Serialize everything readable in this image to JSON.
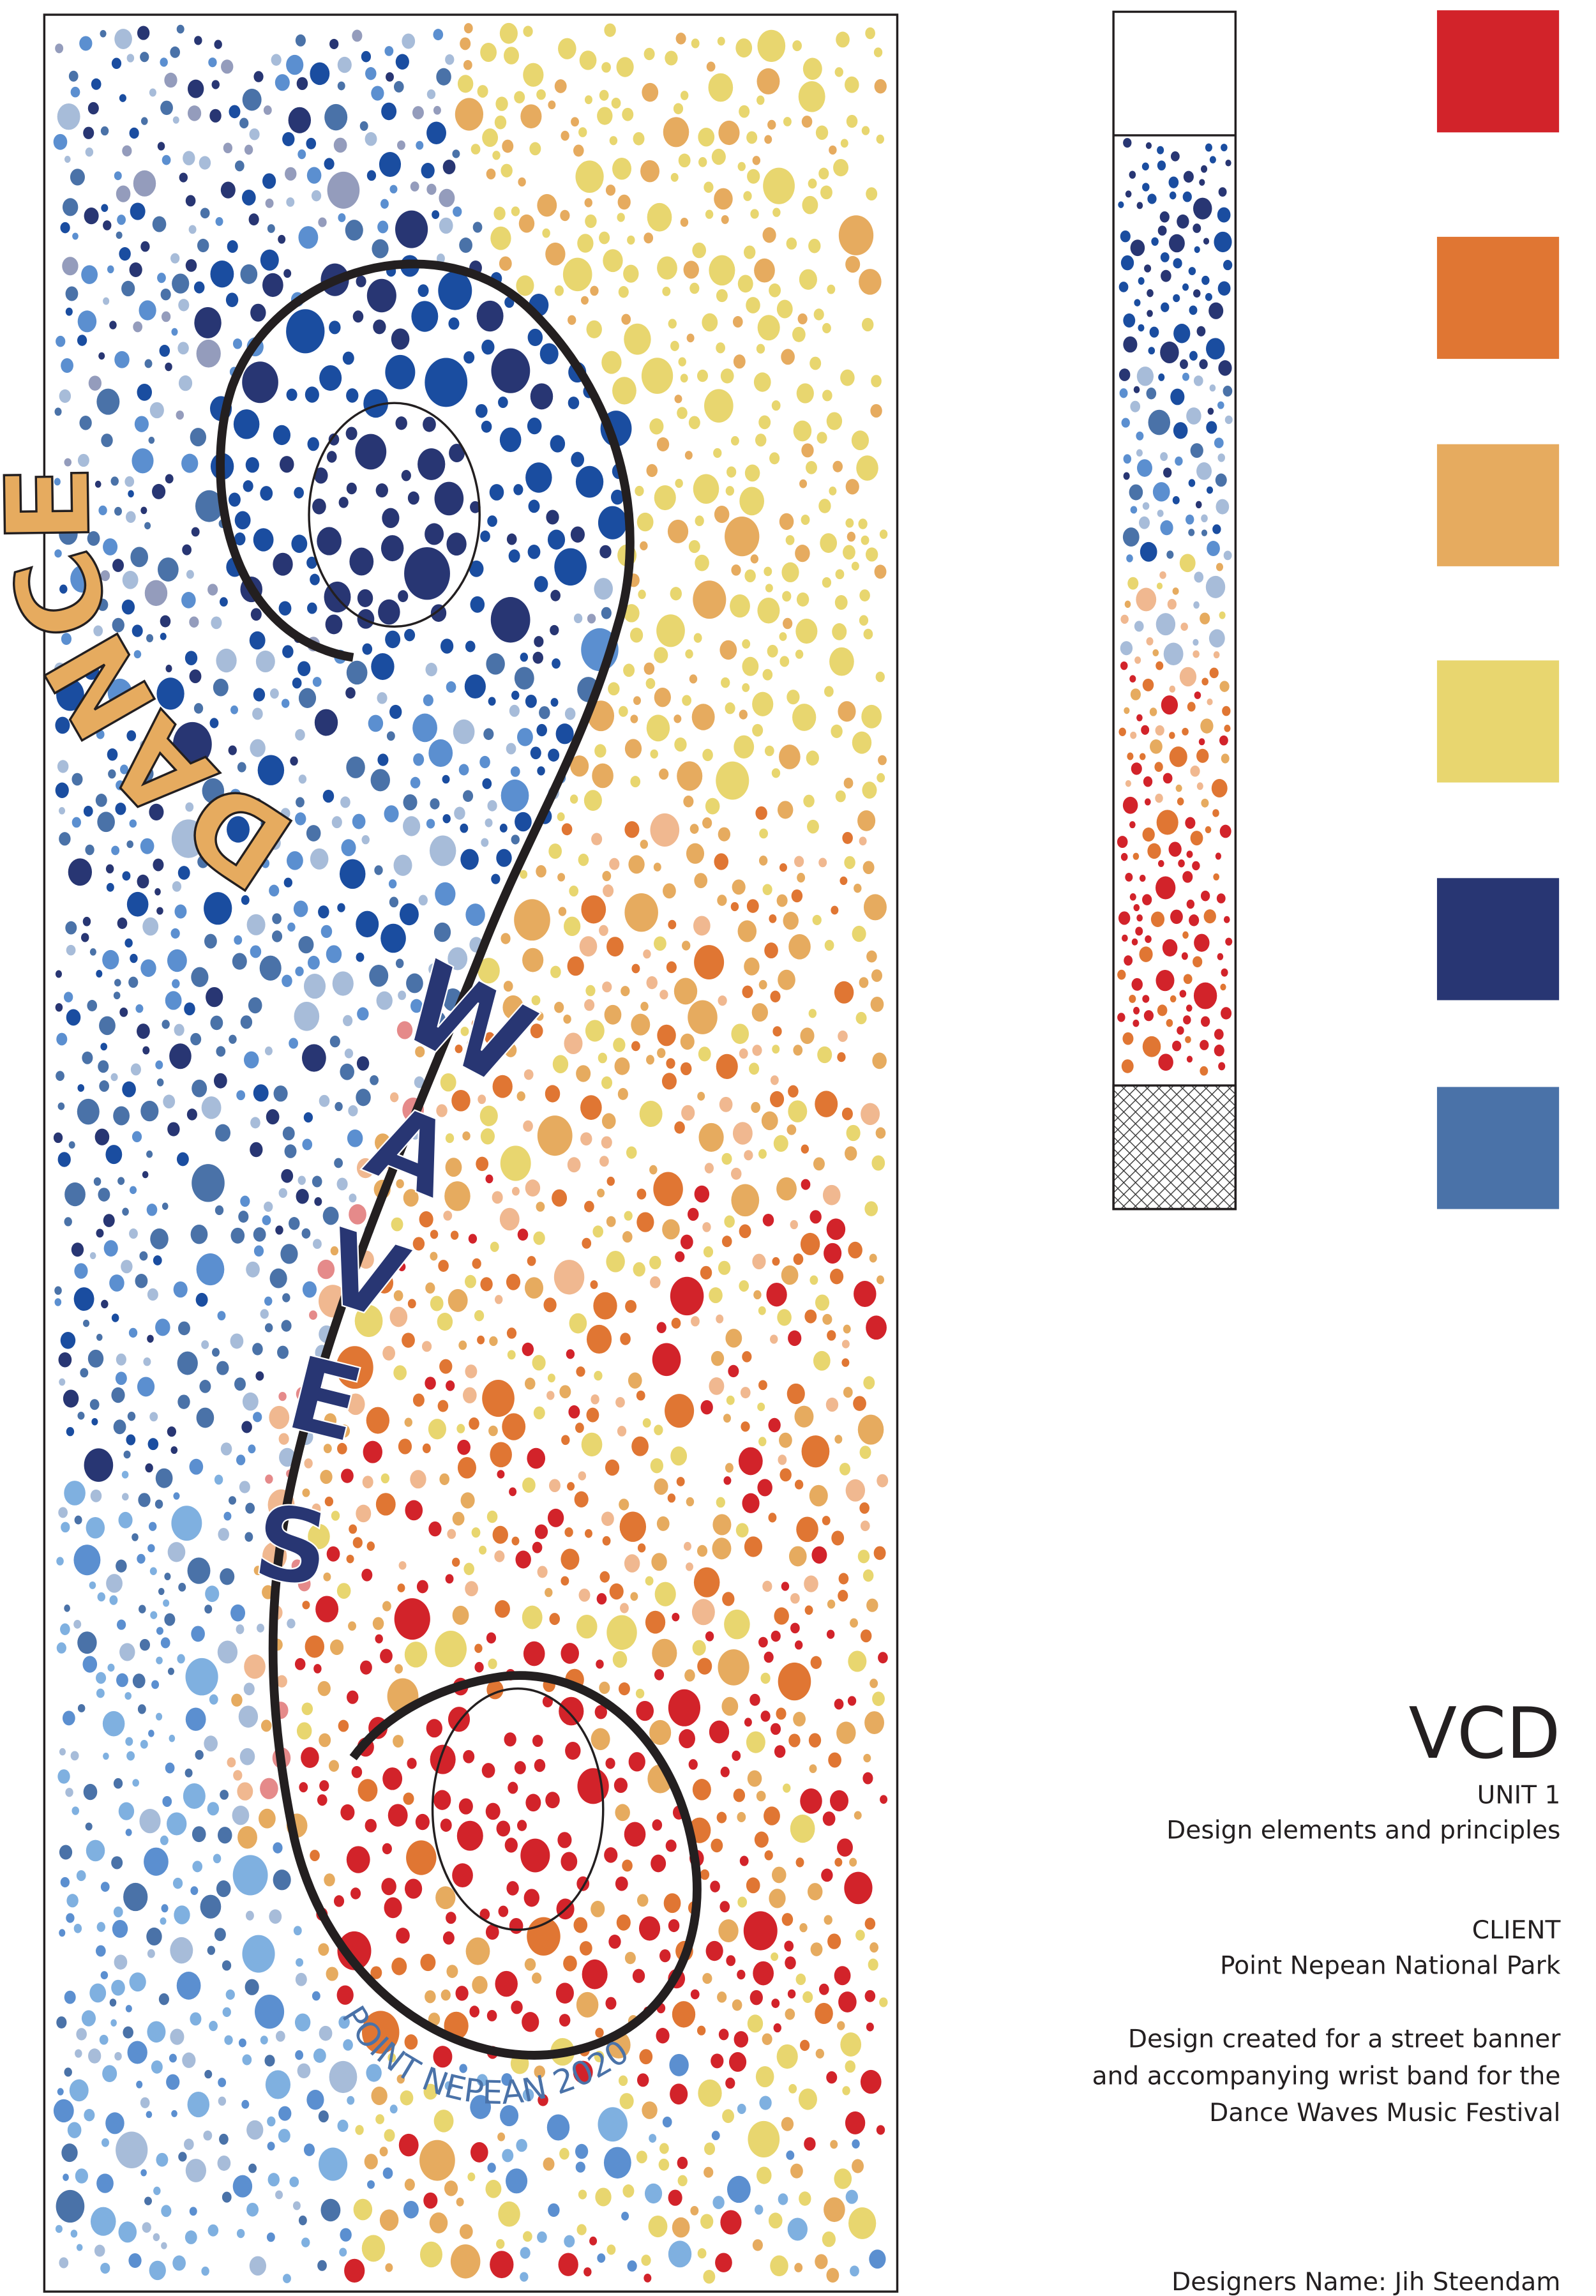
{
  "banner": {
    "title_word_1": "DANCE",
    "title_word_2": "WAVES",
    "subtitle": "POINT NEPEAN 2020",
    "title_1_color": "#e6ab5f",
    "title_2_color": "#283673",
    "subtitle_color": "#4a72a8"
  },
  "palette": {
    "swatches": [
      {
        "name": "red",
        "color": "#d2232a"
      },
      {
        "name": "orange",
        "color": "#e07633"
      },
      {
        "name": "light-orange",
        "color": "#e6ab5f"
      },
      {
        "name": "yellow",
        "color": "#e8d66f"
      },
      {
        "name": "navy",
        "color": "#283673"
      },
      {
        "name": "blue",
        "color": "#4a72a8"
      }
    ]
  },
  "info": {
    "heading": "VCD",
    "unit": "UNIT 1",
    "unit_topic": "Design elements and principles",
    "client_label": "CLIENT",
    "client_name": "Point Nepean National Park",
    "description_lines": [
      "Design created for a street banner",
      "and accompanying wrist band for the",
      "Dance Waves Music Festival"
    ],
    "designer": "Designers Name: Jih Steendam"
  }
}
